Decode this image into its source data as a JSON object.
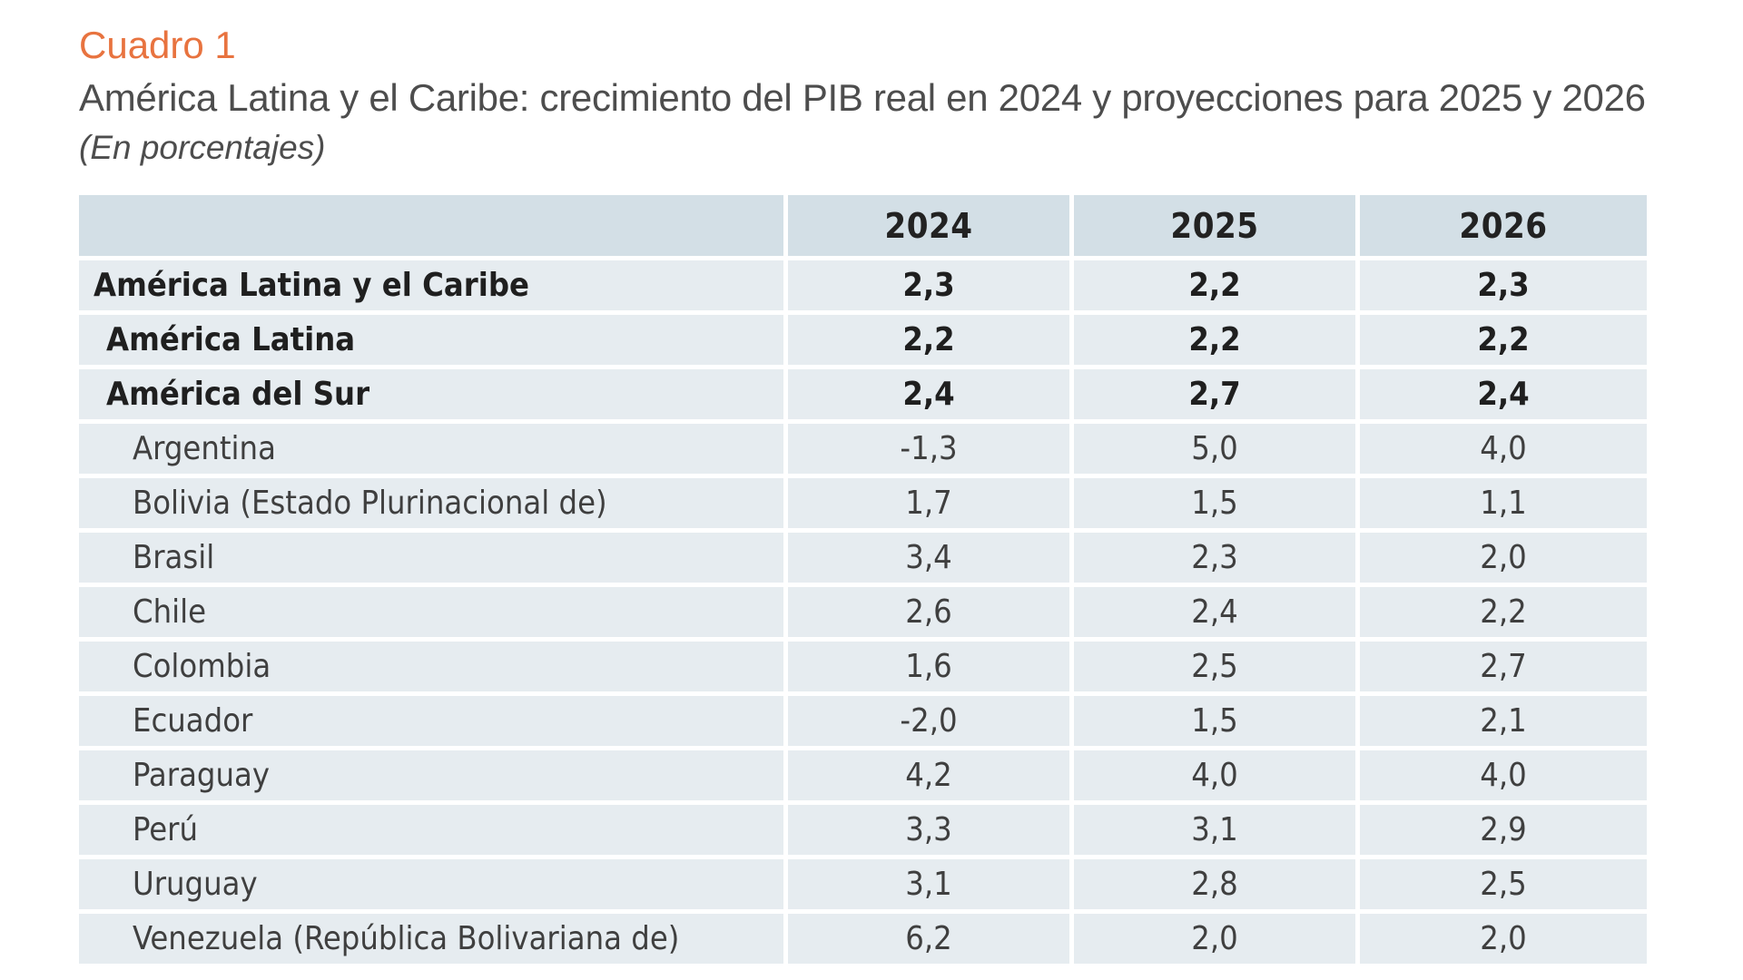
{
  "header": {
    "label": "Cuadro 1",
    "title": "América Latina y el Caribe: crecimiento del PIB real en 2024 y proyecciones para 2025 y 2026",
    "subtitle": "(En porcentajes)"
  },
  "table": {
    "columns": [
      "",
      "2024",
      "2025",
      "2026"
    ],
    "rows": [
      {
        "name": "América Latina y el Caribe",
        "level": 0,
        "values": [
          "2,3",
          "2,2",
          "2,3"
        ]
      },
      {
        "name": "América Latina",
        "level": 1,
        "values": [
          "2,2",
          "2,2",
          "2,2"
        ]
      },
      {
        "name": "América del Sur",
        "level": 1,
        "values": [
          "2,4",
          "2,7",
          "2,4"
        ]
      },
      {
        "name": "Argentina",
        "level": 2,
        "values": [
          "-1,3",
          "5,0",
          "4,0"
        ]
      },
      {
        "name": "Bolivia (Estado Plurinacional de)",
        "level": 2,
        "values": [
          "1,7",
          "1,5",
          "1,1"
        ]
      },
      {
        "name": "Brasil",
        "level": 2,
        "values": [
          "3,4",
          "2,3",
          "2,0"
        ]
      },
      {
        "name": "Chile",
        "level": 2,
        "values": [
          "2,6",
          "2,4",
          "2,2"
        ]
      },
      {
        "name": "Colombia",
        "level": 2,
        "values": [
          "1,6",
          "2,5",
          "2,7"
        ]
      },
      {
        "name": "Ecuador",
        "level": 2,
        "values": [
          "-2,0",
          "1,5",
          "2,1"
        ]
      },
      {
        "name": "Paraguay",
        "level": 2,
        "values": [
          "4,2",
          "4,0",
          "4,0"
        ]
      },
      {
        "name": "Perú",
        "level": 2,
        "values": [
          "3,3",
          "3,1",
          "2,9"
        ]
      },
      {
        "name": "Uruguay",
        "level": 2,
        "values": [
          "3,1",
          "2,8",
          "2,5"
        ]
      },
      {
        "name": "Venezuela (República Bolivariana de)",
        "level": 2,
        "values": [
          "6,2",
          "2,0",
          "2,0"
        ]
      }
    ]
  },
  "colors": {
    "accent": "#e8733f",
    "header_bg": "#d3dfe6",
    "row_bg": "#e6ecf0"
  }
}
